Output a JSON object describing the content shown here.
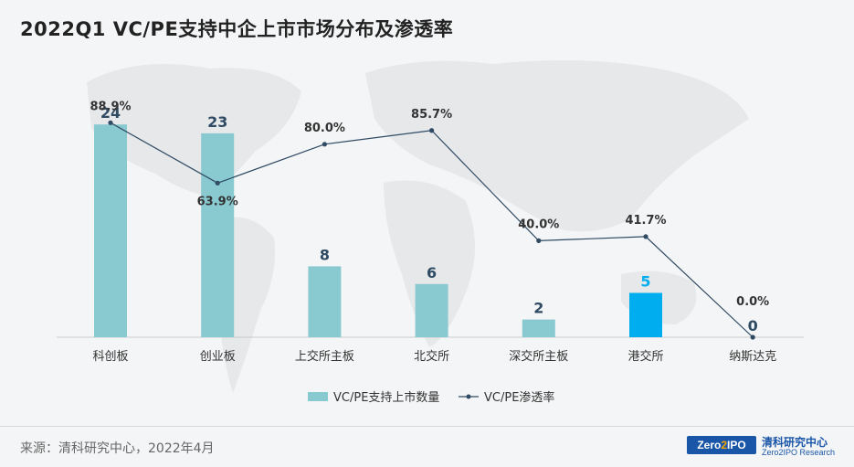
{
  "title": "2022Q1 VC/PE支持中企上市市场分布及渗透率",
  "source": "来源：清科研究中心，2022年4月",
  "logo": {
    "badge_left": "Zero",
    "badge_mid": "2",
    "badge_right": "IPO",
    "cn": "清科研究中心",
    "en": "Zero2IPO Research"
  },
  "colors": {
    "bar": "#89c9d0",
    "bar_highlight": "#00aeef",
    "line": "#2f4a63",
    "value_label": "#2f4a63"
  },
  "chart_data": {
    "type": "bar",
    "categories": [
      "科创板",
      "创业板",
      "上交所主板",
      "北交所",
      "深交所主板",
      "港交所",
      "纳斯达克"
    ],
    "series": [
      {
        "name": "VC/PE支持上市数量",
        "type": "bar",
        "values": [
          24,
          23,
          8,
          6,
          2,
          5,
          0
        ],
        "labels": [
          "24",
          "23",
          "8",
          "6",
          "2",
          "5",
          "0"
        ],
        "highlight_index": 5
      },
      {
        "name": "VC/PE渗透率",
        "type": "line",
        "values": [
          88.9,
          63.9,
          80.0,
          85.7,
          40.0,
          41.7,
          0.0
        ],
        "labels": [
          "88.9%",
          "63.9%",
          "80.0%",
          "85.7%",
          "40.0%",
          "41.7%",
          "0.0%"
        ]
      }
    ],
    "legend": {
      "placement": "bottom",
      "items": [
        "VC/PE支持上市数量",
        "VC/PE渗透率"
      ]
    },
    "grid": false
  }
}
